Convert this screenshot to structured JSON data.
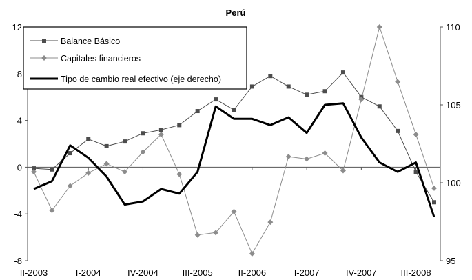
{
  "chart_data": {
    "type": "line",
    "title": "Perú",
    "x_ticks": [
      "II-2003",
      "I-2004",
      "IV-2004",
      "III-2005",
      "II-2006",
      "I-2007",
      "IV-2007",
      "III-2008"
    ],
    "y_left": {
      "ticks": [
        "12",
        "8",
        "4",
        "0",
        "-4",
        "-8"
      ],
      "ylim": [
        -8,
        12
      ]
    },
    "y_right": {
      "ticks": [
        "110",
        "105",
        "100",
        "95"
      ],
      "ylim": [
        95,
        110
      ]
    },
    "series": [
      {
        "name": "Balance Básico",
        "axis": "left",
        "color": "#4d4d4d",
        "marker": "square",
        "values": [
          -0.1,
          -0.2,
          1.2,
          2.4,
          1.8,
          2.2,
          2.9,
          3.2,
          3.6,
          4.8,
          5.8,
          4.9,
          6.9,
          7.8,
          6.9,
          6.2,
          6.5,
          8.1,
          6.0,
          5.2,
          3.1,
          -0.4,
          -3.0
        ]
      },
      {
        "name": "Capitales financieros",
        "axis": "left",
        "color": "#8c8c8c",
        "marker": "diamond",
        "values": [
          -0.4,
          -3.7,
          -1.6,
          -0.5,
          0.3,
          -0.4,
          1.3,
          2.8,
          -0.6,
          -5.8,
          -5.6,
          -3.8,
          -7.4,
          -4.7,
          0.9,
          0.7,
          1.2,
          -0.3,
          5.8,
          12.0,
          7.3,
          2.8,
          -1.8
        ]
      },
      {
        "name": "Tipo de cambio real efectivo (eje derecho)",
        "axis": "right",
        "color": "#000000",
        "marker": "none",
        "values": [
          99.6,
          100.1,
          102.4,
          101.6,
          100.4,
          98.6,
          98.8,
          99.6,
          99.3,
          100.7,
          104.9,
          104.1,
          104.1,
          103.7,
          104.2,
          103.2,
          105.0,
          105.1,
          102.9,
          101.3,
          100.7,
          101.3,
          97.8
        ]
      }
    ],
    "legend_position": "top-left"
  }
}
